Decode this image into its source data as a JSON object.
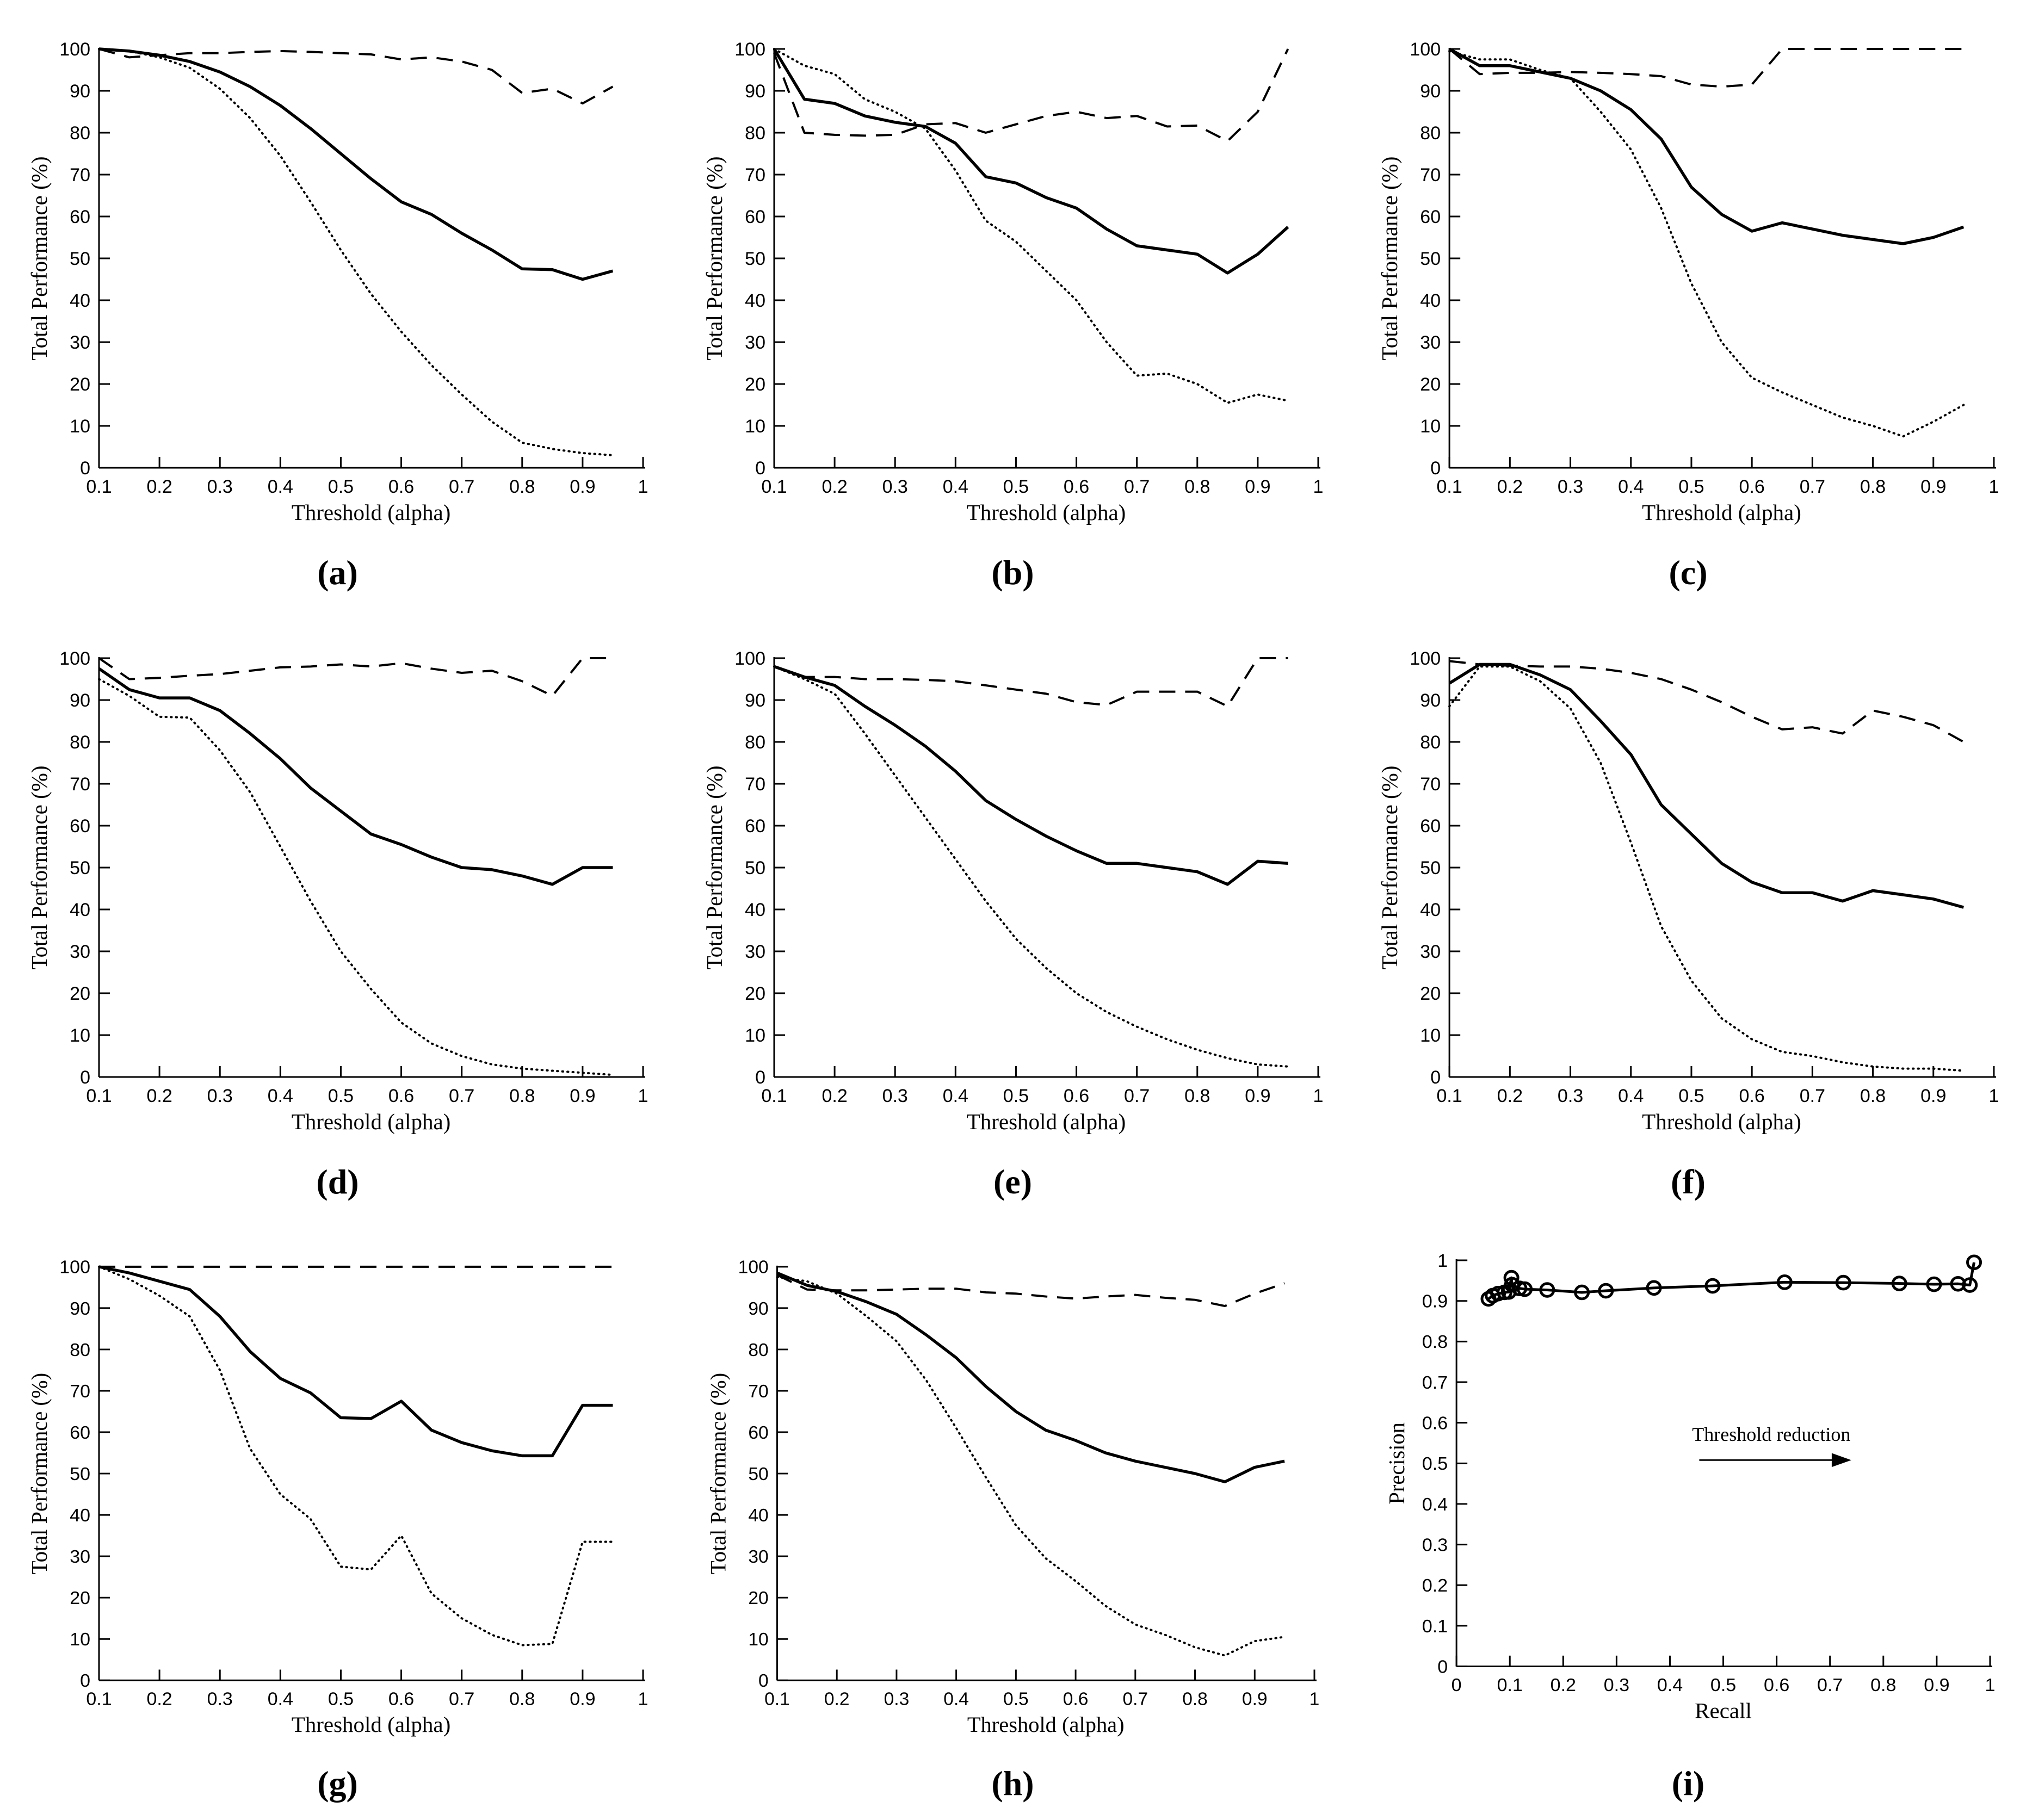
{
  "figure": {
    "background": "#ffffff",
    "line_color": "#000000",
    "xlabel_threshold": "Threshold (alpha)",
    "ylabel_performance": "Total Performance (%)",
    "xlabel_recall": "Recall",
    "ylabel_precision": "Precision"
  },
  "chart_data": [
    {
      "id": "a",
      "caption": "(a)",
      "type": "line",
      "title": "",
      "xlabel": "Threshold (alpha)",
      "ylabel": "Total Performance (%)",
      "xlim": [
        0.1,
        1
      ],
      "ylim": [
        0,
        100
      ],
      "grid": false,
      "legend": "none",
      "xticks": [
        "0.1",
        "0.2",
        "0.3",
        "0.4",
        "0.5",
        "0.6",
        "0.7",
        "0.8",
        "0.9",
        "1"
      ],
      "yticks": [
        "0",
        "10",
        "20",
        "30",
        "40",
        "50",
        "60",
        "70",
        "80",
        "90",
        "100"
      ],
      "x": [
        0.1,
        0.15,
        0.2,
        0.25,
        0.3,
        0.35,
        0.4,
        0.45,
        0.5,
        0.55,
        0.6,
        0.65,
        0.7,
        0.75,
        0.8,
        0.85,
        0.9,
        0.95
      ],
      "series": [
        {
          "name": "solid",
          "style": "solid",
          "values": [
            100,
            99.5,
            98.5,
            97,
            94.5,
            91,
            86.5,
            81,
            75,
            69,
            63.5,
            60.5,
            56,
            52,
            47.5,
            47.3,
            45,
            47
          ]
        },
        {
          "name": "dashed",
          "style": "dashed",
          "values": [
            100,
            98,
            98.5,
            99,
            99,
            99.3,
            99.5,
            99.3,
            99,
            98.7,
            97.5,
            98,
            97,
            95,
            89.5,
            90.5,
            87,
            91
          ]
        },
        {
          "name": "dotted",
          "style": "dotted",
          "values": [
            100,
            99.5,
            98,
            95.5,
            90.5,
            83.5,
            74.5,
            63.5,
            52,
            41.5,
            32.5,
            24.5,
            17.5,
            11,
            6,
            4.5,
            3.5,
            3
          ]
        }
      ]
    },
    {
      "id": "b",
      "caption": "(b)",
      "type": "line",
      "title": "",
      "xlabel": "Threshold (alpha)",
      "ylabel": "Total Performance (%)",
      "xlim": [
        0.1,
        1
      ],
      "ylim": [
        0,
        100
      ],
      "grid": false,
      "legend": "none",
      "xticks": [
        "0.1",
        "0.2",
        "0.3",
        "0.4",
        "0.5",
        "0.6",
        "0.7",
        "0.8",
        "0.9",
        "1"
      ],
      "yticks": [
        "0",
        "10",
        "20",
        "30",
        "40",
        "50",
        "60",
        "70",
        "80",
        "90",
        "100"
      ],
      "x": [
        0.1,
        0.15,
        0.2,
        0.25,
        0.3,
        0.35,
        0.4,
        0.45,
        0.5,
        0.55,
        0.6,
        0.65,
        0.7,
        0.75,
        0.8,
        0.85,
        0.9,
        0.95
      ],
      "series": [
        {
          "name": "solid",
          "style": "solid",
          "values": [
            100,
            88,
            87,
            84,
            82.5,
            81.5,
            77.5,
            69.5,
            68,
            64.5,
            62,
            57,
            53,
            52,
            51,
            46.5,
            51,
            57.5
          ]
        },
        {
          "name": "dashed",
          "style": "dashed",
          "values": [
            99,
            80,
            79.5,
            79.3,
            79.5,
            82,
            82.3,
            80,
            82,
            84,
            85,
            83.5,
            84,
            81.5,
            81.7,
            78,
            85,
            100
          ]
        },
        {
          "name": "dotted",
          "style": "dotted",
          "values": [
            100,
            96,
            94,
            88,
            85,
            81,
            71,
            59,
            54,
            47,
            40,
            30,
            22,
            22.5,
            20,
            15.5,
            17.5,
            16
          ]
        }
      ]
    },
    {
      "id": "c",
      "caption": "(c)",
      "type": "line",
      "title": "",
      "xlabel": "Threshold (alpha)",
      "ylabel": "Total Performance (%)",
      "xlim": [
        0.1,
        1
      ],
      "ylim": [
        0,
        100
      ],
      "grid": false,
      "legend": "none",
      "xticks": [
        "0.1",
        "0.2",
        "0.3",
        "0.4",
        "0.5",
        "0.6",
        "0.7",
        "0.8",
        "0.9",
        "1"
      ],
      "yticks": [
        "0",
        "10",
        "20",
        "30",
        "40",
        "50",
        "60",
        "70",
        "80",
        "90",
        "100"
      ],
      "x": [
        0.1,
        0.15,
        0.2,
        0.25,
        0.3,
        0.35,
        0.4,
        0.45,
        0.5,
        0.55,
        0.6,
        0.65,
        0.7,
        0.75,
        0.8,
        0.85,
        0.9,
        0.95
      ],
      "series": [
        {
          "name": "solid",
          "style": "solid",
          "values": [
            100,
            96,
            96,
            94.5,
            93,
            90,
            85.5,
            78.5,
            67,
            60.5,
            56.5,
            58.5,
            57,
            55.5,
            54.5,
            53.5,
            55,
            57.5
          ]
        },
        {
          "name": "dashed",
          "style": "dashed",
          "values": [
            100,
            94,
            94.3,
            94.3,
            94.5,
            94.3,
            94,
            93.5,
            91.5,
            91,
            91.5,
            100,
            100,
            100,
            100,
            100,
            100,
            100
          ]
        },
        {
          "name": "dotted",
          "style": "dotted",
          "values": [
            99.5,
            97.5,
            97.5,
            95,
            93,
            85,
            76,
            62,
            44,
            30,
            21.5,
            18,
            15,
            12,
            10,
            7.5,
            11,
            15
          ]
        }
      ]
    },
    {
      "id": "d",
      "caption": "(d)",
      "type": "line",
      "title": "",
      "xlabel": "Threshold (alpha)",
      "ylabel": "Total Performance (%)",
      "xlim": [
        0.1,
        1
      ],
      "ylim": [
        0,
        100
      ],
      "grid": false,
      "legend": "none",
      "xticks": [
        "0.1",
        "0.2",
        "0.3",
        "0.4",
        "0.5",
        "0.6",
        "0.7",
        "0.8",
        "0.9",
        "1"
      ],
      "yticks": [
        "0",
        "10",
        "20",
        "30",
        "40",
        "50",
        "60",
        "70",
        "80",
        "90",
        "100"
      ],
      "x": [
        0.1,
        0.15,
        0.2,
        0.25,
        0.3,
        0.35,
        0.4,
        0.45,
        0.5,
        0.55,
        0.6,
        0.65,
        0.7,
        0.75,
        0.8,
        0.85,
        0.9,
        0.95
      ],
      "series": [
        {
          "name": "solid",
          "style": "solid",
          "values": [
            97.5,
            92.5,
            90.5,
            90.5,
            87.5,
            82,
            76,
            69,
            63.5,
            58,
            55.5,
            52.5,
            50,
            49.5,
            48,
            46,
            50,
            50
          ]
        },
        {
          "name": "dashed",
          "style": "dashed",
          "values": [
            100,
            95,
            95.3,
            95.8,
            96.2,
            97,
            97.8,
            98,
            98.5,
            98,
            98.8,
            97.5,
            96.5,
            97,
            94.5,
            91,
            100,
            100
          ]
        },
        {
          "name": "dotted",
          "style": "dotted",
          "values": [
            95,
            91,
            86,
            85.8,
            78,
            68,
            55,
            42,
            30,
            21,
            13,
            8,
            5,
            3,
            2,
            1.5,
            1,
            0.5
          ]
        }
      ]
    },
    {
      "id": "e",
      "caption": "(e)",
      "type": "line",
      "title": "",
      "xlabel": "Threshold (alpha)",
      "ylabel": "Total Performance (%)",
      "xlim": [
        0.1,
        1
      ],
      "ylim": [
        0,
        100
      ],
      "grid": false,
      "legend": "none",
      "xticks": [
        "0.1",
        "0.2",
        "0.3",
        "0.4",
        "0.5",
        "0.6",
        "0.7",
        "0.8",
        "0.9",
        "1"
      ],
      "yticks": [
        "0",
        "10",
        "20",
        "30",
        "40",
        "50",
        "60",
        "70",
        "80",
        "90",
        "100"
      ],
      "x": [
        0.1,
        0.15,
        0.2,
        0.25,
        0.3,
        0.35,
        0.4,
        0.45,
        0.5,
        0.55,
        0.6,
        0.65,
        0.7,
        0.75,
        0.8,
        0.85,
        0.9,
        0.95
      ],
      "series": [
        {
          "name": "solid",
          "style": "solid",
          "values": [
            98,
            95.5,
            93.5,
            88.5,
            84,
            79,
            73,
            66,
            61.5,
            57.5,
            54,
            51,
            51,
            50,
            49,
            46,
            51.5,
            51
          ]
        },
        {
          "name": "dashed",
          "style": "dashed",
          "values": [
            98,
            95.5,
            95.5,
            95,
            95,
            94.8,
            94.5,
            93.5,
            92.5,
            91.5,
            89.5,
            88.8,
            92,
            92,
            92,
            88.5,
            100,
            100
          ]
        },
        {
          "name": "dotted",
          "style": "dotted",
          "values": [
            98,
            95,
            91.5,
            82,
            72,
            62,
            52,
            42,
            33,
            26,
            20,
            15.5,
            12,
            9,
            6.5,
            4.5,
            3,
            2.5
          ]
        }
      ]
    },
    {
      "id": "f",
      "caption": "(f)",
      "type": "line",
      "title": "",
      "xlabel": "Threshold (alpha)",
      "ylabel": "Total Performance (%)",
      "xlim": [
        0.1,
        1
      ],
      "ylim": [
        0,
        100
      ],
      "grid": false,
      "legend": "none",
      "xticks": [
        "0.1",
        "0.2",
        "0.3",
        "0.4",
        "0.5",
        "0.6",
        "0.7",
        "0.8",
        "0.9",
        "1"
      ],
      "yticks": [
        "0",
        "10",
        "20",
        "30",
        "40",
        "50",
        "60",
        "70",
        "80",
        "90",
        "100"
      ],
      "x": [
        0.1,
        0.15,
        0.2,
        0.25,
        0.3,
        0.35,
        0.4,
        0.45,
        0.5,
        0.55,
        0.6,
        0.65,
        0.7,
        0.75,
        0.8,
        0.85,
        0.9,
        0.95
      ],
      "series": [
        {
          "name": "solid",
          "style": "solid",
          "values": [
            94,
            98.5,
            98.5,
            96,
            92.5,
            85,
            77,
            65,
            58,
            51,
            46.5,
            44,
            44,
            42,
            44.5,
            43.5,
            42.5,
            40.5
          ]
        },
        {
          "name": "dashed",
          "style": "dashed",
          "values": [
            99.3,
            98.5,
            98.2,
            98,
            98,
            97.5,
            96.5,
            95,
            92.5,
            89.5,
            86,
            83,
            83.5,
            82,
            87.5,
            86,
            84,
            80
          ]
        },
        {
          "name": "dotted",
          "style": "dotted",
          "values": [
            88.5,
            98,
            98,
            94.5,
            88,
            75,
            56,
            36,
            23,
            14,
            9,
            6,
            5,
            3.5,
            2.5,
            2,
            2,
            1.5
          ]
        }
      ]
    },
    {
      "id": "g",
      "caption": "(g)",
      "type": "line",
      "title": "",
      "xlabel": "Threshold (alpha)",
      "ylabel": "Total Performance (%)",
      "xlim": [
        0.1,
        1
      ],
      "ylim": [
        0,
        100
      ],
      "grid": false,
      "legend": "none",
      "xticks": [
        "0.1",
        "0.2",
        "0.3",
        "0.4",
        "0.5",
        "0.6",
        "0.7",
        "0.8",
        "0.9",
        "1"
      ],
      "yticks": [
        "0",
        "10",
        "20",
        "30",
        "40",
        "50",
        "60",
        "70",
        "80",
        "90",
        "100"
      ],
      "x": [
        0.1,
        0.15,
        0.2,
        0.25,
        0.3,
        0.35,
        0.4,
        0.45,
        0.5,
        0.55,
        0.6,
        0.65,
        0.7,
        0.75,
        0.8,
        0.85,
        0.9,
        0.95
      ],
      "series": [
        {
          "name": "solid",
          "style": "solid",
          "values": [
            100,
            98.5,
            96.5,
            94.5,
            88,
            79.5,
            73,
            69.5,
            63.5,
            63.3,
            67.5,
            60.5,
            57.5,
            55.5,
            54.3,
            54.3,
            66.5,
            66.5
          ]
        },
        {
          "name": "dashed",
          "style": "dashed",
          "values": [
            100,
            100,
            100,
            100,
            100,
            100,
            100,
            100,
            100,
            100,
            100,
            100,
            100,
            100,
            100,
            100,
            100,
            100
          ]
        },
        {
          "name": "dotted",
          "style": "dotted",
          "values": [
            100,
            97,
            93,
            88,
            75,
            56,
            45,
            39,
            27.5,
            26.8,
            35,
            21,
            15,
            11,
            8.5,
            8.8,
            33.5,
            33.5
          ]
        }
      ]
    },
    {
      "id": "h",
      "caption": "(h)",
      "type": "line",
      "title": "",
      "xlabel": "Threshold (alpha)",
      "ylabel": "Total Performance (%)",
      "xlim": [
        0.1,
        1
      ],
      "ylim": [
        0,
        100
      ],
      "grid": false,
      "legend": "none",
      "xticks": [
        "0.1",
        "0.2",
        "0.3",
        "0.4",
        "0.5",
        "0.6",
        "0.7",
        "0.8",
        "0.9",
        "1"
      ],
      "yticks": [
        "0",
        "10",
        "20",
        "30",
        "40",
        "50",
        "60",
        "70",
        "80",
        "90",
        "100"
      ],
      "x": [
        0.1,
        0.15,
        0.2,
        0.25,
        0.3,
        0.35,
        0.4,
        0.45,
        0.5,
        0.55,
        0.6,
        0.65,
        0.7,
        0.75,
        0.8,
        0.85,
        0.9,
        0.95
      ],
      "series": [
        {
          "name": "solid",
          "style": "solid",
          "values": [
            98.5,
            95.5,
            94,
            91.5,
            88.5,
            83.5,
            78,
            71,
            65,
            60.5,
            58,
            55,
            53,
            51.5,
            50,
            48,
            51.5,
            53
          ]
        },
        {
          "name": "dashed",
          "style": "dashed",
          "values": [
            98,
            94.5,
            94.3,
            94.3,
            94.5,
            94.7,
            94.7,
            93.8,
            93.5,
            92.8,
            92.3,
            92.8,
            93.2,
            92.5,
            92,
            90.5,
            93.5,
            96
          ]
        },
        {
          "name": "dotted",
          "style": "dotted",
          "values": [
            97.5,
            96.5,
            93.5,
            88,
            82,
            72.5,
            61,
            49,
            37.5,
            29.5,
            24,
            18,
            13.5,
            11,
            8,
            6,
            9.5,
            10.5
          ]
        }
      ]
    },
    {
      "id": "i",
      "caption": "(i)",
      "type": "scatter",
      "title": "",
      "xlabel": "Recall",
      "ylabel": "Precision",
      "xlim": [
        0,
        1
      ],
      "ylim": [
        0,
        1
      ],
      "grid": false,
      "legend": "none",
      "xticks": [
        "0",
        "0.1",
        "0.2",
        "0.3",
        "0.4",
        "0.5",
        "0.6",
        "0.7",
        "0.8",
        "0.9",
        "1"
      ],
      "yticks": [
        "0",
        "0.1",
        "0.2",
        "0.3",
        "0.4",
        "0.5",
        "0.6",
        "0.7",
        "0.8",
        "0.9",
        "1"
      ],
      "marker": "open-circle",
      "points": [
        [
          0.06,
          0.905
        ],
        [
          0.068,
          0.913
        ],
        [
          0.078,
          0.918
        ],
        [
          0.09,
          0.921
        ],
        [
          0.098,
          0.922
        ],
        [
          0.103,
          0.957
        ],
        [
          0.104,
          0.94
        ],
        [
          0.118,
          0.931
        ],
        [
          0.128,
          0.929
        ],
        [
          0.17,
          0.927
        ],
        [
          0.235,
          0.921
        ],
        [
          0.28,
          0.925
        ],
        [
          0.37,
          0.932
        ],
        [
          0.48,
          0.937
        ],
        [
          0.615,
          0.946
        ],
        [
          0.725,
          0.945
        ],
        [
          0.83,
          0.943
        ],
        [
          0.895,
          0.941
        ],
        [
          0.94,
          0.942
        ],
        [
          0.962,
          0.939
        ],
        [
          0.97,
          0.995
        ]
      ],
      "annotation": {
        "text": "Threshold reduction",
        "text_x": 0.59,
        "text_y": 0.555,
        "arrow_x1": 0.455,
        "arrow_x2": 0.74,
        "arrow_y": 0.508
      }
    }
  ]
}
